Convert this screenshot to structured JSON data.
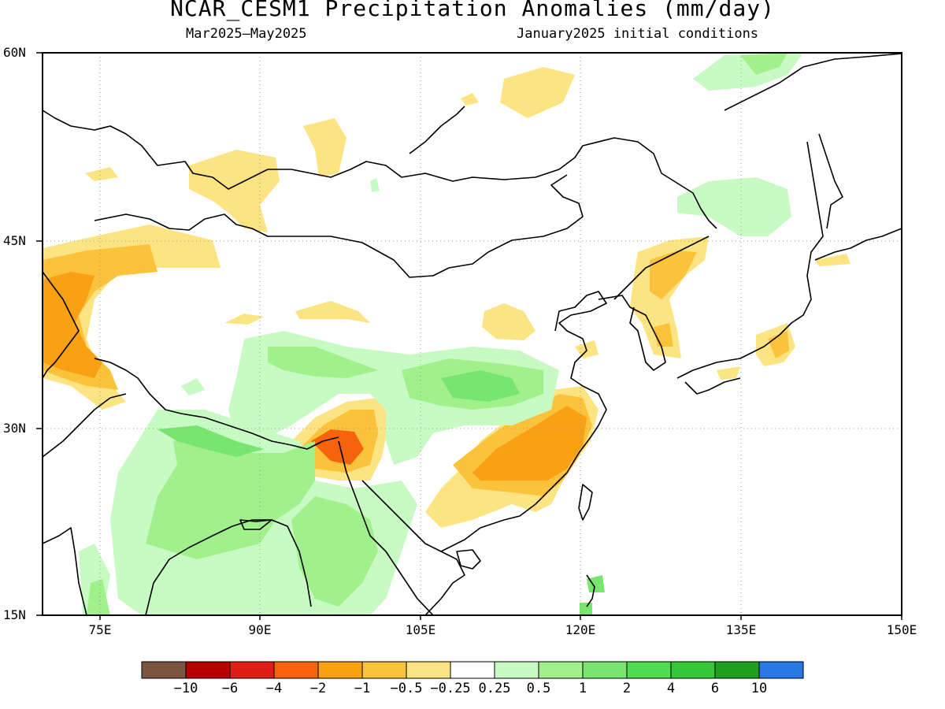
{
  "title": "NCAR_CESM1 Precipitation Anomalies (mm/day)",
  "subtitle_left": "Mar2025–May2025",
  "subtitle_right": "January2025 initial conditions",
  "y_ticks": [
    "60N",
    "45N",
    "30N",
    "15N"
  ],
  "x_ticks": [
    "75E",
    "90E",
    "105E",
    "120E",
    "135E",
    "150E"
  ],
  "colorbar": {
    "colors": [
      "#7b5443",
      "#b40000",
      "#dc1e14",
      "#f5640a",
      "#faa014",
      "#fbc23c",
      "#fde482",
      "#ffffff",
      "#c8fac3",
      "#a0f08c",
      "#78e66e",
      "#50dc50",
      "#37c837",
      "#1ea01e",
      "#2878e6"
    ],
    "labels": [
      "−10",
      "−6",
      "−4",
      "−2",
      "−1",
      "−0.5",
      "−0.25",
      "0.25",
      "0.5",
      "1",
      "2",
      "4",
      "6",
      "10"
    ]
  },
  "fill_colors": {
    "dry_light": "#fde482",
    "dry_mid": "#fbc23c",
    "dry_strong": "#faa014",
    "dry_heavy": "#f5640a",
    "wet_light": "#c8fac3",
    "wet_mid": "#a0f08c",
    "wet_strong": "#78e66e"
  }
}
